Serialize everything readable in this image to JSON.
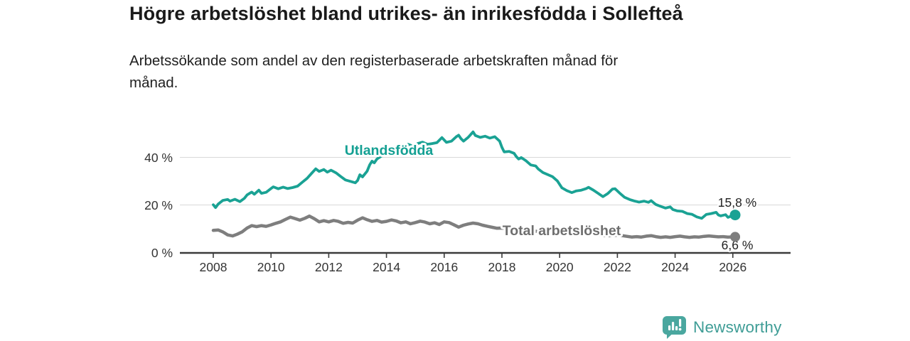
{
  "header": {
    "title": "Högre arbetslöshet bland utrikes- än inrikesfödda i Sollefteå",
    "subtitle_lines": [
      "Arbetssökande som andel av den registerbaserade arbetskraften månad för",
      "månad."
    ]
  },
  "chart_data": {
    "type": "line",
    "title": "Högre arbetslöshet bland utrikes- än inrikesfödda i Sollefteå",
    "ylabel": "",
    "xlabel": "",
    "ylim": [
      0,
      53
    ],
    "xlim": [
      2006.85,
      2028
    ],
    "grid": "horizontal",
    "legend_position": "inline-labels",
    "x_axis": {
      "ticks": [
        2008,
        2010,
        2012,
        2014,
        2016,
        2018,
        2020,
        2022,
        2024,
        2026
      ]
    },
    "y_axis": {
      "ticks": [
        {
          "value": 0,
          "label": "0 %"
        },
        {
          "value": 20,
          "label": "20 %"
        },
        {
          "value": 40,
          "label": "40 %"
        }
      ]
    },
    "style": {
      "grid_color": "#d9d9d9",
      "axis_color": "#3b3b3b",
      "tick_text_color": "#333333",
      "end_label_color": "#1f1f1f",
      "background": "#ffffff"
    },
    "series": [
      {
        "name": "Utlandsfödda",
        "color": "#1aa294",
        "label_color": "#14a093",
        "end_label": "15,8 %",
        "end_value": 15.8,
        "points": [
          [
            2008.0,
            20.1
          ],
          [
            2008.08,
            18.9
          ],
          [
            2008.17,
            20.4
          ],
          [
            2008.33,
            21.9
          ],
          [
            2008.5,
            22.3
          ],
          [
            2008.58,
            21.6
          ],
          [
            2008.75,
            22.4
          ],
          [
            2008.92,
            21.4
          ],
          [
            2009.08,
            22.8
          ],
          [
            2009.17,
            24.2
          ],
          [
            2009.33,
            25.4
          ],
          [
            2009.42,
            24.5
          ],
          [
            2009.58,
            26.2
          ],
          [
            2009.67,
            24.9
          ],
          [
            2009.83,
            25.3
          ],
          [
            2010.0,
            26.9
          ],
          [
            2010.08,
            27.6
          ],
          [
            2010.25,
            26.8
          ],
          [
            2010.42,
            27.5
          ],
          [
            2010.58,
            26.9
          ],
          [
            2010.75,
            27.3
          ],
          [
            2010.92,
            27.9
          ],
          [
            2011.08,
            29.5
          ],
          [
            2011.25,
            31.2
          ],
          [
            2011.42,
            33.5
          ],
          [
            2011.55,
            35.2
          ],
          [
            2011.67,
            34.1
          ],
          [
            2011.83,
            34.9
          ],
          [
            2011.95,
            33.8
          ],
          [
            2012.08,
            34.6
          ],
          [
            2012.25,
            33.5
          ],
          [
            2012.42,
            31.9
          ],
          [
            2012.58,
            30.5
          ],
          [
            2012.75,
            29.9
          ],
          [
            2012.92,
            29.3
          ],
          [
            2013.0,
            30.3
          ],
          [
            2013.08,
            32.7
          ],
          [
            2013.17,
            31.8
          ],
          [
            2013.33,
            34.2
          ],
          [
            2013.42,
            36.9
          ],
          [
            2013.5,
            38.4
          ],
          [
            2013.58,
            37.7
          ],
          [
            2013.67,
            39.3
          ],
          [
            2013.83,
            40.6
          ],
          [
            2014.0,
            41.8
          ],
          [
            2014.17,
            43.1
          ],
          [
            2014.33,
            44.7
          ],
          [
            2014.42,
            45.4
          ],
          [
            2014.58,
            44.8
          ],
          [
            2014.75,
            45.5
          ],
          [
            2014.92,
            44.7
          ],
          [
            2015.08,
            45.8
          ],
          [
            2015.25,
            46.4
          ],
          [
            2015.42,
            45.5
          ],
          [
            2015.58,
            45.8
          ],
          [
            2015.75,
            46.2
          ],
          [
            2015.92,
            48.3
          ],
          [
            2016.08,
            46.3
          ],
          [
            2016.25,
            46.8
          ],
          [
            2016.42,
            48.7
          ],
          [
            2016.5,
            49.3
          ],
          [
            2016.58,
            47.9
          ],
          [
            2016.67,
            46.8
          ],
          [
            2016.83,
            48.4
          ],
          [
            2017.0,
            50.7
          ],
          [
            2017.08,
            49.2
          ],
          [
            2017.25,
            48.4
          ],
          [
            2017.42,
            48.9
          ],
          [
            2017.58,
            48.1
          ],
          [
            2017.75,
            48.7
          ],
          [
            2017.92,
            46.8
          ],
          [
            2018.0,
            44.2
          ],
          [
            2018.08,
            42.3
          ],
          [
            2018.25,
            42.5
          ],
          [
            2018.42,
            41.7
          ],
          [
            2018.5,
            40.3
          ],
          [
            2018.58,
            39.3
          ],
          [
            2018.67,
            39.9
          ],
          [
            2018.83,
            38.6
          ],
          [
            2019.0,
            36.8
          ],
          [
            2019.17,
            36.4
          ],
          [
            2019.25,
            35.2
          ],
          [
            2019.42,
            33.6
          ],
          [
            2019.58,
            32.8
          ],
          [
            2019.75,
            31.9
          ],
          [
            2019.92,
            30.1
          ],
          [
            2020.08,
            27.2
          ],
          [
            2020.25,
            26.0
          ],
          [
            2020.42,
            25.2
          ],
          [
            2020.58,
            25.9
          ],
          [
            2020.75,
            26.2
          ],
          [
            2020.92,
            26.9
          ],
          [
            2021.0,
            27.4
          ],
          [
            2021.17,
            26.2
          ],
          [
            2021.33,
            24.9
          ],
          [
            2021.5,
            23.5
          ],
          [
            2021.67,
            24.8
          ],
          [
            2021.83,
            26.7
          ],
          [
            2021.92,
            26.8
          ],
          [
            2022.08,
            25.0
          ],
          [
            2022.25,
            23.2
          ],
          [
            2022.42,
            22.3
          ],
          [
            2022.58,
            21.7
          ],
          [
            2022.75,
            21.2
          ],
          [
            2022.92,
            21.6
          ],
          [
            2023.08,
            21.1
          ],
          [
            2023.17,
            21.8
          ],
          [
            2023.33,
            20.2
          ],
          [
            2023.5,
            19.4
          ],
          [
            2023.67,
            18.7
          ],
          [
            2023.83,
            19.2
          ],
          [
            2023.92,
            18.1
          ],
          [
            2024.08,
            17.5
          ],
          [
            2024.25,
            17.3
          ],
          [
            2024.42,
            16.4
          ],
          [
            2024.58,
            16.1
          ],
          [
            2024.75,
            15.0
          ],
          [
            2024.92,
            14.4
          ],
          [
            2025.08,
            16.0
          ],
          [
            2025.25,
            16.4
          ],
          [
            2025.42,
            16.9
          ],
          [
            2025.5,
            15.8
          ],
          [
            2025.58,
            15.4
          ],
          [
            2025.75,
            15.9
          ],
          [
            2025.83,
            14.8
          ],
          [
            2025.92,
            15.2
          ],
          [
            2026.08,
            15.8
          ]
        ]
      },
      {
        "name": "Total arbetslöshet",
        "color": "#7e7e7e",
        "label_color": "#6e6e6e",
        "end_label": "6,6 %",
        "end_value": 6.6,
        "points": [
          [
            2008.0,
            9.3
          ],
          [
            2008.17,
            9.5
          ],
          [
            2008.33,
            8.7
          ],
          [
            2008.5,
            7.4
          ],
          [
            2008.67,
            7.0
          ],
          [
            2008.83,
            7.7
          ],
          [
            2009.0,
            8.7
          ],
          [
            2009.17,
            10.3
          ],
          [
            2009.33,
            11.3
          ],
          [
            2009.5,
            10.9
          ],
          [
            2009.67,
            11.3
          ],
          [
            2009.83,
            11.0
          ],
          [
            2010.0,
            11.6
          ],
          [
            2010.17,
            12.3
          ],
          [
            2010.33,
            12.9
          ],
          [
            2010.5,
            13.9
          ],
          [
            2010.67,
            14.9
          ],
          [
            2010.83,
            14.3
          ],
          [
            2011.0,
            13.6
          ],
          [
            2011.17,
            14.4
          ],
          [
            2011.33,
            15.3
          ],
          [
            2011.5,
            14.2
          ],
          [
            2011.67,
            12.9
          ],
          [
            2011.83,
            13.4
          ],
          [
            2012.0,
            12.9
          ],
          [
            2012.17,
            13.5
          ],
          [
            2012.33,
            13.1
          ],
          [
            2012.5,
            12.3
          ],
          [
            2012.67,
            12.7
          ],
          [
            2012.83,
            12.4
          ],
          [
            2013.0,
            13.6
          ],
          [
            2013.17,
            14.6
          ],
          [
            2013.33,
            13.8
          ],
          [
            2013.5,
            13.1
          ],
          [
            2013.67,
            13.5
          ],
          [
            2013.83,
            12.8
          ],
          [
            2014.0,
            13.1
          ],
          [
            2014.17,
            13.7
          ],
          [
            2014.33,
            13.3
          ],
          [
            2014.5,
            12.5
          ],
          [
            2014.67,
            12.9
          ],
          [
            2014.83,
            12.1
          ],
          [
            2015.0,
            12.6
          ],
          [
            2015.17,
            13.2
          ],
          [
            2015.33,
            12.8
          ],
          [
            2015.5,
            12.1
          ],
          [
            2015.67,
            12.5
          ],
          [
            2015.83,
            11.8
          ],
          [
            2016.0,
            12.9
          ],
          [
            2016.17,
            12.6
          ],
          [
            2016.33,
            11.7
          ],
          [
            2016.5,
            10.7
          ],
          [
            2016.67,
            11.5
          ],
          [
            2016.83,
            12.0
          ],
          [
            2017.0,
            12.4
          ],
          [
            2017.17,
            12.1
          ],
          [
            2017.33,
            11.5
          ],
          [
            2017.5,
            11.0
          ],
          [
            2017.67,
            10.6
          ],
          [
            2017.83,
            10.2
          ],
          [
            2018.0,
            10.3
          ],
          [
            2018.25,
            10.0
          ],
          [
            2018.5,
            9.2
          ],
          [
            2018.75,
            9.0
          ],
          [
            2019.0,
            9.1
          ],
          [
            2019.25,
            8.9
          ],
          [
            2019.5,
            8.3
          ],
          [
            2019.75,
            8.2
          ],
          [
            2020.0,
            8.5
          ],
          [
            2020.25,
            8.9
          ],
          [
            2020.5,
            8.5
          ],
          [
            2020.75,
            8.1
          ],
          [
            2021.0,
            8.0
          ],
          [
            2021.25,
            7.6
          ],
          [
            2021.5,
            7.1
          ],
          [
            2021.75,
            7.1
          ],
          [
            2022.0,
            7.3
          ],
          [
            2022.17,
            7.1
          ],
          [
            2022.33,
            6.8
          ],
          [
            2022.5,
            6.5
          ],
          [
            2022.67,
            6.7
          ],
          [
            2022.83,
            6.5
          ],
          [
            2023.0,
            6.9
          ],
          [
            2023.17,
            7.1
          ],
          [
            2023.33,
            6.7
          ],
          [
            2023.5,
            6.4
          ],
          [
            2023.67,
            6.6
          ],
          [
            2023.83,
            6.4
          ],
          [
            2024.0,
            6.7
          ],
          [
            2024.17,
            6.9
          ],
          [
            2024.33,
            6.6
          ],
          [
            2024.5,
            6.4
          ],
          [
            2024.67,
            6.6
          ],
          [
            2024.83,
            6.5
          ],
          [
            2025.0,
            6.8
          ],
          [
            2025.17,
            7.0
          ],
          [
            2025.33,
            6.8
          ],
          [
            2025.5,
            6.6
          ],
          [
            2025.67,
            6.7
          ],
          [
            2025.83,
            6.5
          ],
          [
            2026.08,
            6.6
          ]
        ]
      }
    ]
  },
  "footer": {
    "brand": "Newsworthy",
    "logo_icon": "bar-chart-speech-bubble-icon",
    "brand_color": "#3f9d96",
    "logo_color": "#4aa79f"
  }
}
